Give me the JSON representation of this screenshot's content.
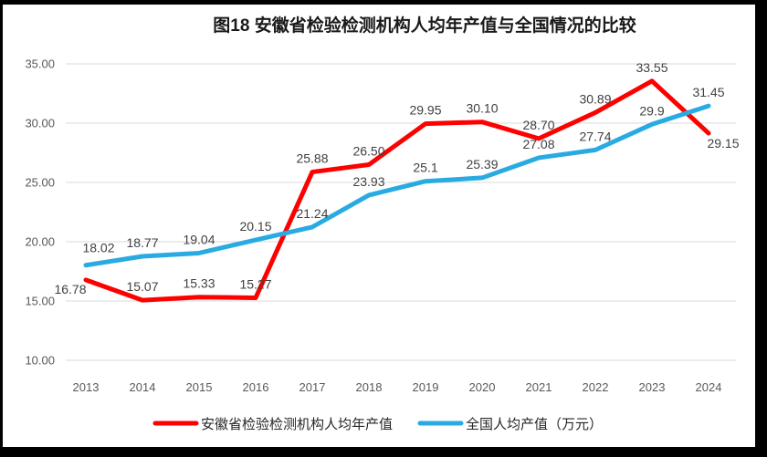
{
  "frame": {
    "border_color": "#000000",
    "background": "#ffffff"
  },
  "chart_data": {
    "type": "line",
    "title": "图18 安徽省检验检测机构人均年产值与全国情况的比较",
    "xlabel": "",
    "ylabel": "",
    "categories": [
      "2013",
      "2014",
      "2015",
      "2016",
      "2017",
      "2018",
      "2019",
      "2020",
      "2021",
      "2022",
      "2023",
      "2024"
    ],
    "series": [
      {
        "name": "安徽省检验检测机构人均年产值",
        "color": "#FF0000",
        "values": [
          16.78,
          15.07,
          15.33,
          15.27,
          25.88,
          26.5,
          29.95,
          30.1,
          28.7,
          30.89,
          33.55,
          29.15
        ],
        "labels": [
          "16.78",
          "15.07",
          "15.33",
          "15.27",
          "25.88",
          "26.50",
          "29.95",
          "30.10",
          "28.70",
          "30.89",
          "33.55",
          "29.15"
        ]
      },
      {
        "name": "全国人均产值（万元）",
        "color": "#29ABE2",
        "values": [
          18.02,
          18.77,
          19.04,
          20.15,
          21.24,
          23.93,
          25.1,
          25.39,
          27.08,
          27.74,
          29.9,
          31.45
        ],
        "labels": [
          "18.02",
          "18.77",
          "19.04",
          "20.15",
          "21.24",
          "23.93",
          "25.1",
          "25.39",
          "27.08",
          "27.74",
          "29.9",
          "31.45"
        ]
      }
    ],
    "ylim": [
      10,
      35
    ],
    "y_ticks": [
      "35.00",
      "30.00",
      "25.00",
      "20.00",
      "15.00",
      "10.00"
    ],
    "grid": "horizontal",
    "legend_position": "bottom",
    "colors": {
      "title": "#1a1a1a",
      "axis_labels": "#595959",
      "data_labels": "#404040",
      "gridlines": "#D9D9D9",
      "legend_text": "#262626"
    }
  }
}
